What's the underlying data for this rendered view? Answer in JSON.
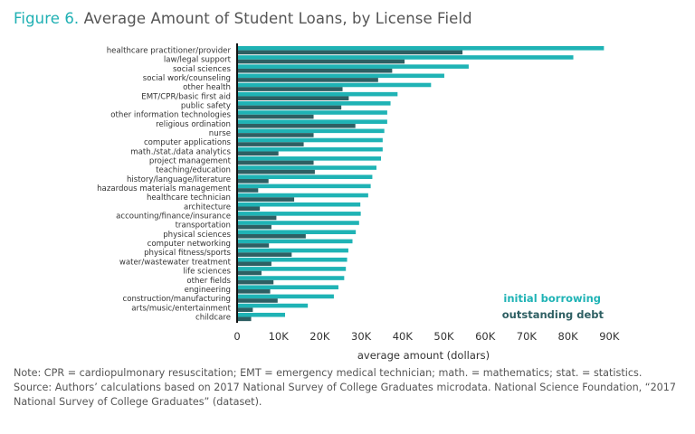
{
  "figure_label": "Figure 6.",
  "title": "Average Amount of Student Loans, by License Field",
  "colors": {
    "initial_borrowing": "#1fb3b5",
    "outstanding_debt": "#2e5f63",
    "title_accent": "#1fb0b3"
  },
  "chart_data": {
    "type": "bar",
    "orientation": "horizontal",
    "title": "Average Amount of Student Loans, by License Field",
    "xlabel": "average amount (dollars)",
    "ylabel": "",
    "xlim": [
      0,
      90000
    ],
    "xticks": [
      0,
      10000,
      20000,
      30000,
      40000,
      50000,
      60000,
      70000,
      80000,
      90000
    ],
    "xtick_labels": [
      "0",
      "10K",
      "20K",
      "30K",
      "40K",
      "50K",
      "60K",
      "70K",
      "80K",
      "90K"
    ],
    "grid": false,
    "legend_placement": "bottom-right",
    "categories": [
      "healthcare practitioner/provider",
      "law/legal support",
      "social sciences",
      "social work/counseling",
      "other health",
      "EMT/CPR/basic first aid",
      "public safety",
      "other information technologies",
      "religious ordination",
      "nurse",
      "computer applications",
      "math./stat./data analytics",
      "project management",
      "teaching/education",
      "history/language/literature",
      "hazardous materials management",
      "healthcare technician",
      "architecture",
      "accounting/finance/insurance",
      "transportation",
      "physical sciences",
      "computer networking",
      "physical fitness/sports",
      "water/wastewater treatment",
      "life sciences",
      "other fields",
      "engineering",
      "construction/manufacturing",
      "arts/music/entertainment",
      "childcare"
    ],
    "series": [
      {
        "name": "initial borrowing",
        "values": [
          88700,
          81300,
          56000,
          50100,
          46900,
          38800,
          37100,
          36300,
          36300,
          35600,
          35200,
          35200,
          34800,
          33700,
          32700,
          32300,
          31700,
          29800,
          29900,
          29500,
          28700,
          27900,
          26900,
          26600,
          26300,
          25900,
          24500,
          23400,
          17100,
          11600
        ]
      },
      {
        "name": "outstanding debt",
        "values": [
          54500,
          40500,
          37500,
          34100,
          25500,
          27000,
          25200,
          18500,
          28600,
          18500,
          16100,
          10000,
          18500,
          18800,
          7600,
          5100,
          13800,
          5500,
          9500,
          8300,
          16600,
          7700,
          13200,
          8300,
          5900,
          8800,
          8000,
          9800,
          3800,
          3400
        ]
      }
    ]
  },
  "notes": [
    "Note: CPR = cardiopulmonary resuscitation; EMT = emergency medical technician; math. = mathematics; stat. = statistics.",
    "Source: Authors’ calculations based on 2017 National Survey of College Graduates microdata. National Science Foundation, “2017 National Survey of College Graduates” (dataset)."
  ]
}
